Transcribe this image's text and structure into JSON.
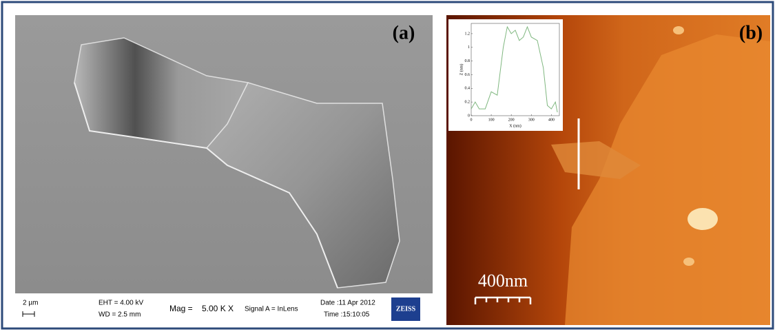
{
  "panels": {
    "a": {
      "label": "(a)",
      "info": {
        "scale": "2 µm",
        "eht": "EHT = 4.00 kV",
        "wd": "WD = 2.5 mm",
        "mag_label": "Mag =",
        "mag_value": "5.00 K X",
        "signal": "Signal A = InLens",
        "date": "Date :11 Apr 2012",
        "time": "Time :15:10:05",
        "brand": "ZEISS"
      }
    },
    "b": {
      "label": "(b)",
      "scale": "400nm"
    }
  },
  "chart_data": {
    "type": "line",
    "xlabel": "X (nm)",
    "ylabel": "Z (nm)",
    "x": [
      0,
      20,
      40,
      70,
      100,
      130,
      160,
      180,
      200,
      220,
      240,
      260,
      280,
      300,
      330,
      360,
      380,
      400,
      420,
      430
    ],
    "series": [
      {
        "color": "#7fb77f",
        "values": [
          0.1,
          0.2,
          0.1,
          0.1,
          0.35,
          0.3,
          1.0,
          1.3,
          1.2,
          1.25,
          1.1,
          1.15,
          1.3,
          1.15,
          1.1,
          0.7,
          0.15,
          0.1,
          0.2,
          0.05
        ]
      }
    ],
    "xlim": [
      0,
      440
    ],
    "ylim": [
      0,
      1.35
    ],
    "xticks": [
      0,
      100,
      200,
      300,
      400
    ],
    "yticks": [
      0,
      0.2,
      0.4,
      0.6,
      0.8,
      1,
      1.2
    ]
  }
}
